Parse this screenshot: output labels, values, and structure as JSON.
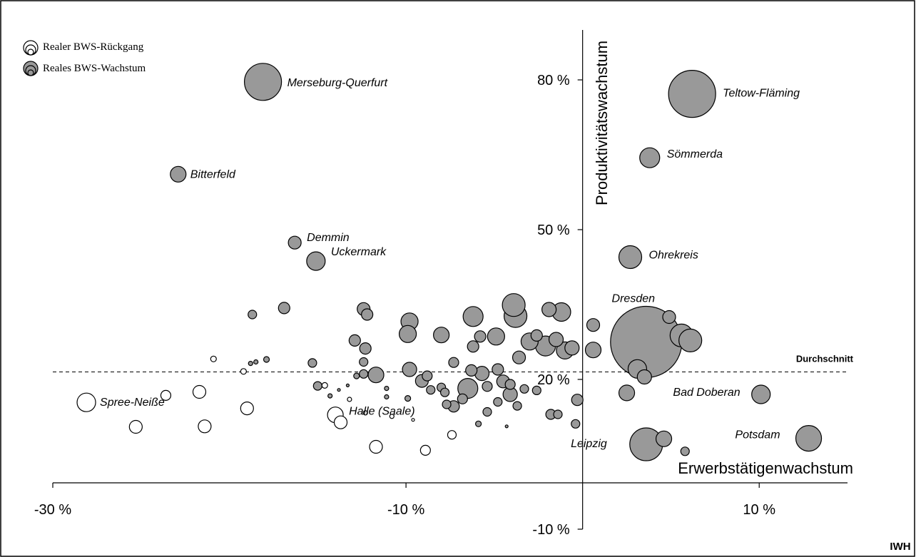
{
  "chart_data": {
    "type": "scatter",
    "title": "",
    "xlabel": "Erwerbstätigenwachstum",
    "ylabel": "Produktivitätswachstum",
    "xlim": [
      -30,
      15
    ],
    "ylim": [
      -10,
      90
    ],
    "x_ticks": [
      {
        "value": -30,
        "label": "-30 %"
      },
      {
        "value": -10,
        "label": "-10 %"
      },
      {
        "value": 10,
        "label": "10 %"
      }
    ],
    "y_ticks": [
      {
        "value": 80,
        "label": "80 %"
      },
      {
        "value": 50,
        "label": "50 %"
      },
      {
        "value": 20,
        "label": "20 %"
      },
      {
        "value": -10,
        "label": "-10 %"
      }
    ],
    "average_line": {
      "y": 21.5,
      "label": "Durchschnitt"
    },
    "source": "IWH",
    "legend": {
      "position": "top-left",
      "entries": [
        {
          "label": "Realer BWS-Rückgang",
          "color": "#ffffff"
        },
        {
          "label": "Reales BWS-Wachstum",
          "color": "#999999"
        }
      ]
    },
    "colors": {
      "growth": "#999999",
      "decline": "#ffffff",
      "stroke": "#000000"
    },
    "series": [
      {
        "name": "Reales BWS-Wachstum",
        "points": [
          {
            "x": -18.1,
            "y": 79.6,
            "size": 26,
            "label": "Merseburg-Querfurt"
          },
          {
            "x": -22.9,
            "y": 61.1,
            "size": 11,
            "label": "Bitterfeld"
          },
          {
            "x": -16.3,
            "y": 47.4,
            "size": 9,
            "label": "Demmin"
          },
          {
            "x": -15.1,
            "y": 43.7,
            "size": 13,
            "label": "Uckermark"
          },
          {
            "x": 6.2,
            "y": 77.2,
            "size": 33,
            "label": "Teltow-Fläming"
          },
          {
            "x": 3.8,
            "y": 64.4,
            "size": 14,
            "label": "Sömmerda"
          },
          {
            "x": 2.7,
            "y": 44.5,
            "size": 16,
            "label": "Ohrekreis"
          },
          {
            "x": 3.6,
            "y": 27.5,
            "size": 50,
            "label": "Dresden"
          },
          {
            "x": 10.1,
            "y": 17.0,
            "size": 13,
            "label": "Bad Doberan"
          },
          {
            "x": 12.8,
            "y": 8.2,
            "size": 18,
            "label": "Potsdam"
          },
          {
            "x": 3.6,
            "y": 7.0,
            "size": 23,
            "label": "Leipzig"
          },
          {
            "x": -18.7,
            "y": 33.0,
            "size": 6,
            "label": ""
          },
          {
            "x": -16.9,
            "y": 34.3,
            "size": 8,
            "label": ""
          },
          {
            "x": -15.3,
            "y": 23.3,
            "size": 6,
            "label": ""
          },
          {
            "x": -15.0,
            "y": 18.7,
            "size": 6,
            "label": ""
          },
          {
            "x": -12.4,
            "y": 34.1,
            "size": 9,
            "label": ""
          },
          {
            "x": -12.2,
            "y": 33.0,
            "size": 8,
            "label": ""
          },
          {
            "x": -12.9,
            "y": 27.8,
            "size": 8,
            "label": ""
          },
          {
            "x": -12.3,
            "y": 26.2,
            "size": 8,
            "label": ""
          },
          {
            "x": -12.4,
            "y": 23.5,
            "size": 6,
            "label": ""
          },
          {
            "x": -12.4,
            "y": 21.1,
            "size": 6,
            "label": ""
          },
          {
            "x": -11.7,
            "y": 20.9,
            "size": 11,
            "label": ""
          },
          {
            "x": -9.8,
            "y": 31.6,
            "size": 12,
            "label": ""
          },
          {
            "x": -9.9,
            "y": 29.1,
            "size": 12,
            "label": ""
          },
          {
            "x": -9.8,
            "y": 22.0,
            "size": 10,
            "label": ""
          },
          {
            "x": -8.0,
            "y": 28.9,
            "size": 11,
            "label": ""
          },
          {
            "x": -7.3,
            "y": 23.4,
            "size": 7,
            "label": ""
          },
          {
            "x": -6.2,
            "y": 32.6,
            "size": 14,
            "label": ""
          },
          {
            "x": -6.3,
            "y": 21.8,
            "size": 8,
            "label": ""
          },
          {
            "x": -6.2,
            "y": 26.6,
            "size": 8,
            "label": ""
          },
          {
            "x": -5.8,
            "y": 28.6,
            "size": 8,
            "label": ""
          },
          {
            "x": -5.7,
            "y": 21.2,
            "size": 10,
            "label": ""
          },
          {
            "x": -4.9,
            "y": 28.6,
            "size": 12,
            "label": ""
          },
          {
            "x": -4.8,
            "y": 22.0,
            "size": 8,
            "label": ""
          },
          {
            "x": -3.8,
            "y": 32.7,
            "size": 16,
            "label": ""
          },
          {
            "x": -3.9,
            "y": 34.9,
            "size": 16,
            "label": ""
          },
          {
            "x": -3.6,
            "y": 24.4,
            "size": 9,
            "label": ""
          },
          {
            "x": -3.0,
            "y": 27.6,
            "size": 12,
            "label": ""
          },
          {
            "x": -2.6,
            "y": 28.8,
            "size": 8,
            "label": ""
          },
          {
            "x": -2.1,
            "y": 26.7,
            "size": 14,
            "label": ""
          },
          {
            "x": -1.9,
            "y": 34.0,
            "size": 10,
            "label": ""
          },
          {
            "x": -1.5,
            "y": 28.0,
            "size": 10,
            "label": ""
          },
          {
            "x": -1.2,
            "y": 33.5,
            "size": 13,
            "label": ""
          },
          {
            "x": -1.0,
            "y": 25.8,
            "size": 12,
            "label": ""
          },
          {
            "x": -0.6,
            "y": 26.3,
            "size": 10,
            "label": ""
          },
          {
            "x": 0.6,
            "y": 30.9,
            "size": 9,
            "label": ""
          },
          {
            "x": 0.6,
            "y": 25.9,
            "size": 11,
            "label": ""
          },
          {
            "x": 4.9,
            "y": 32.5,
            "size": 9,
            "label": ""
          },
          {
            "x": 5.6,
            "y": 28.8,
            "size": 16,
            "label": ""
          },
          {
            "x": 6.1,
            "y": 27.8,
            "size": 16,
            "label": ""
          },
          {
            "x": 3.1,
            "y": 22.1,
            "size": 13,
            "label": ""
          },
          {
            "x": 3.5,
            "y": 20.5,
            "size": 10,
            "label": ""
          },
          {
            "x": -9.1,
            "y": 19.7,
            "size": 9,
            "label": ""
          },
          {
            "x": -8.8,
            "y": 20.7,
            "size": 7,
            "label": ""
          },
          {
            "x": -8.6,
            "y": 17.9,
            "size": 6,
            "label": ""
          },
          {
            "x": -8.0,
            "y": 18.4,
            "size": 6,
            "label": ""
          },
          {
            "x": -7.8,
            "y": 17.4,
            "size": 6,
            "label": ""
          },
          {
            "x": -6.5,
            "y": 18.2,
            "size": 14,
            "label": ""
          },
          {
            "x": -6.8,
            "y": 16.1,
            "size": 7,
            "label": ""
          },
          {
            "x": -7.3,
            "y": 14.6,
            "size": 8,
            "label": ""
          },
          {
            "x": -7.7,
            "y": 15.0,
            "size": 6,
            "label": ""
          },
          {
            "x": -5.4,
            "y": 18.6,
            "size": 7,
            "label": ""
          },
          {
            "x": -4.5,
            "y": 19.6,
            "size": 9,
            "label": ""
          },
          {
            "x": -4.1,
            "y": 17.0,
            "size": 10,
            "label": ""
          },
          {
            "x": -4.1,
            "y": 19.0,
            "size": 7,
            "label": ""
          },
          {
            "x": -4.8,
            "y": 15.5,
            "size": 6,
            "label": ""
          },
          {
            "x": -5.4,
            "y": 13.5,
            "size": 6,
            "label": ""
          },
          {
            "x": -3.3,
            "y": 18.1,
            "size": 6,
            "label": ""
          },
          {
            "x": -2.6,
            "y": 17.8,
            "size": 6,
            "label": ""
          },
          {
            "x": -3.7,
            "y": 14.7,
            "size": 6,
            "label": ""
          },
          {
            "x": -1.8,
            "y": 13.0,
            "size": 7,
            "label": ""
          },
          {
            "x": -1.4,
            "y": 13.0,
            "size": 6,
            "label": ""
          },
          {
            "x": -0.3,
            "y": 15.9,
            "size": 8,
            "label": ""
          },
          {
            "x": -0.4,
            "y": 11.1,
            "size": 6,
            "label": ""
          },
          {
            "x": 2.5,
            "y": 17.3,
            "size": 11,
            "label": ""
          },
          {
            "x": 4.6,
            "y": 8.1,
            "size": 11,
            "label": ""
          },
          {
            "x": 5.8,
            "y": 5.6,
            "size": 6,
            "label": ""
          },
          {
            "x": -17.9,
            "y": 24.0,
            "size": 4,
            "label": ""
          },
          {
            "x": -18.5,
            "y": 23.5,
            "size": 3,
            "label": ""
          },
          {
            "x": -18.8,
            "y": 23.2,
            "size": 3,
            "label": ""
          },
          {
            "x": -12.8,
            "y": 20.7,
            "size": 4,
            "label": ""
          },
          {
            "x": -14.3,
            "y": 16.7,
            "size": 3,
            "label": ""
          },
          {
            "x": -13.3,
            "y": 18.8,
            "size": 2,
            "label": ""
          },
          {
            "x": -13.8,
            "y": 17.9,
            "size": 2,
            "label": ""
          },
          {
            "x": -11.1,
            "y": 16.5,
            "size": 3,
            "label": ""
          },
          {
            "x": -11.1,
            "y": 18.2,
            "size": 3,
            "label": ""
          },
          {
            "x": -9.9,
            "y": 16.2,
            "size": 4,
            "label": ""
          },
          {
            "x": -5.9,
            "y": 11.1,
            "size": 4,
            "label": ""
          },
          {
            "x": -4.3,
            "y": 10.6,
            "size": 2,
            "label": ""
          }
        ]
      },
      {
        "name": "Realer BWS-Rückgang",
        "points": [
          {
            "x": -28.1,
            "y": 15.4,
            "size": 13,
            "label": "Spree-Neiße"
          },
          {
            "x": -14.0,
            "y": 12.9,
            "size": 11,
            "label": "Halle (Saale)"
          },
          {
            "x": -23.6,
            "y": 16.8,
            "size": 7,
            "label": ""
          },
          {
            "x": -21.7,
            "y": 17.5,
            "size": 9,
            "label": ""
          },
          {
            "x": -19.0,
            "y": 14.2,
            "size": 9,
            "label": ""
          },
          {
            "x": -25.3,
            "y": 10.5,
            "size": 9,
            "label": ""
          },
          {
            "x": -21.4,
            "y": 10.6,
            "size": 9,
            "label": ""
          },
          {
            "x": -13.7,
            "y": 11.4,
            "size": 9,
            "label": ""
          },
          {
            "x": -11.7,
            "y": 6.5,
            "size": 9,
            "label": ""
          },
          {
            "x": -8.9,
            "y": 5.8,
            "size": 7,
            "label": ""
          },
          {
            "x": -7.4,
            "y": 8.9,
            "size": 6,
            "label": ""
          },
          {
            "x": -20.9,
            "y": 24.1,
            "size": 4,
            "label": ""
          },
          {
            "x": -19.2,
            "y": 21.6,
            "size": 4,
            "label": ""
          },
          {
            "x": -14.6,
            "y": 18.8,
            "size": 4,
            "label": ""
          },
          {
            "x": -12.3,
            "y": 13.3,
            "size": 3,
            "label": ""
          },
          {
            "x": -13.2,
            "y": 16.0,
            "size": 3,
            "label": ""
          },
          {
            "x": -10.8,
            "y": 12.6,
            "size": 3,
            "label": ""
          },
          {
            "x": -9.6,
            "y": 11.9,
            "size": 2,
            "label": ""
          }
        ]
      }
    ]
  }
}
